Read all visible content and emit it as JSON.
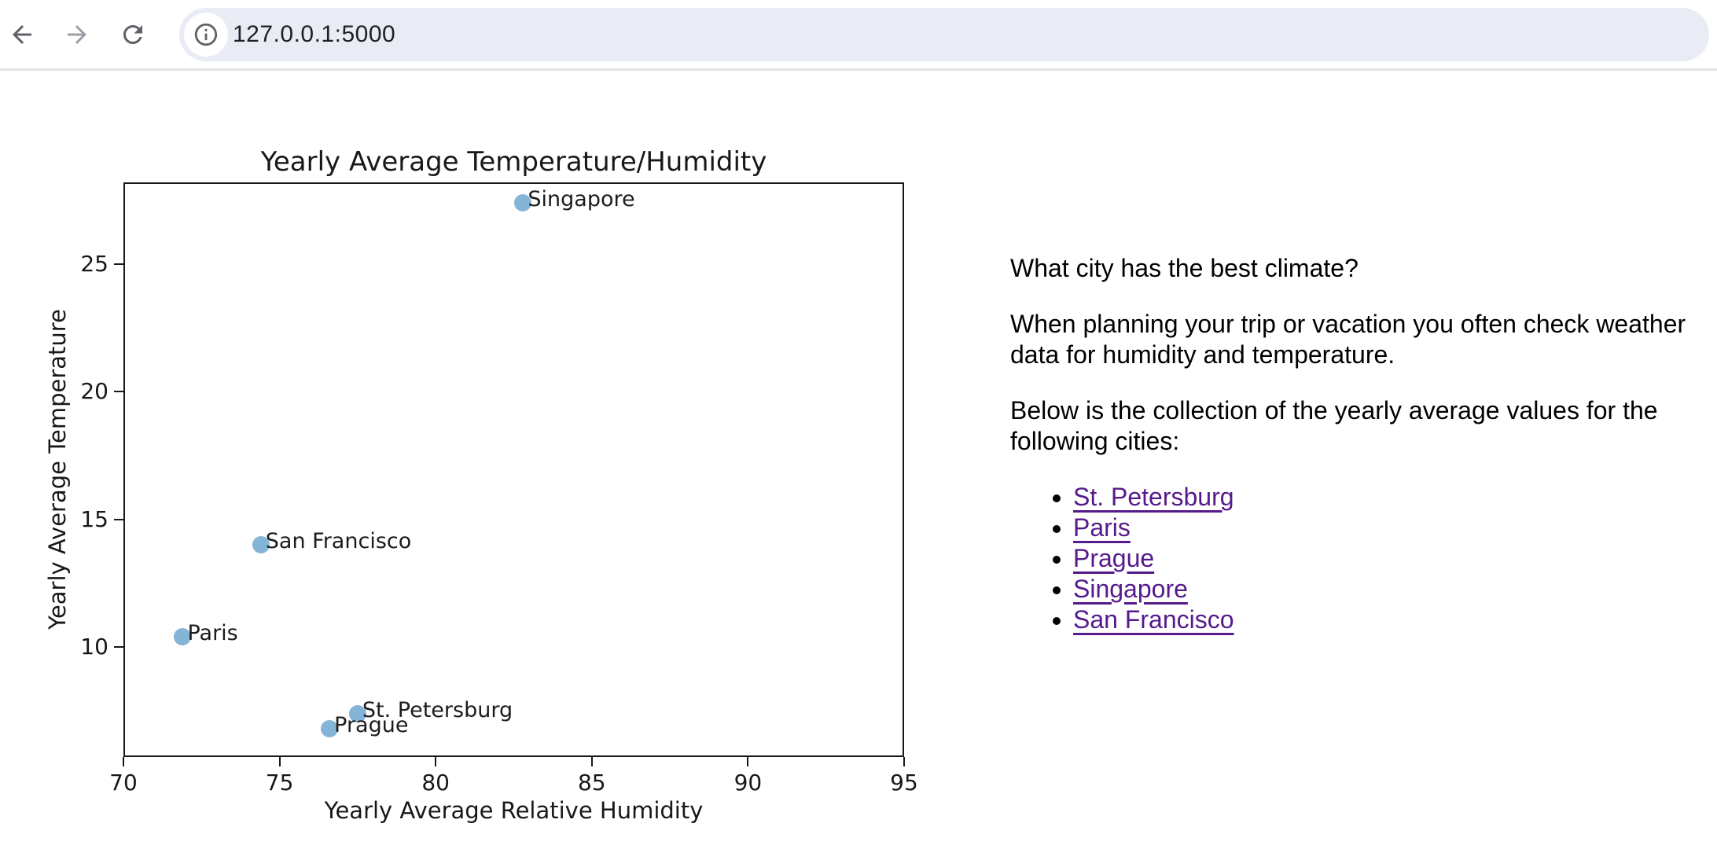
{
  "browser": {
    "url": "127.0.0.1:5000",
    "icons": {
      "back": "back-arrow-icon",
      "forward": "forward-arrow-icon",
      "reload": "reload-icon",
      "site_info": "info-icon"
    },
    "colors": {
      "icon_enabled": "#5f6368",
      "icon_disabled": "#9aa0a6",
      "omnibox_bg": "#e9ecf5",
      "url_text": "#1f2023"
    }
  },
  "content": {
    "heading_question": "What city has the best climate?",
    "para_planning": "When planning your trip or vacation you often check weather data for humidity and temperature.",
    "para_collection": "Below is the collection of the yearly average values for the following cities:",
    "city_links": [
      {
        "label": "St. Petersburg"
      },
      {
        "label": "Paris"
      },
      {
        "label": "Prague"
      },
      {
        "label": "Singapore"
      },
      {
        "label": "San Francisco"
      }
    ],
    "link_color": "#551a8b"
  },
  "chart_data": {
    "type": "scatter",
    "title": "Yearly Average Temperature/Humidity",
    "xlabel": "Yearly Average Relative Humidity",
    "ylabel": "Yearly Average Temperature",
    "xlim": [
      70,
      95
    ],
    "ylim": [
      5.7,
      28.2
    ],
    "xticks": [
      70,
      75,
      80,
      85,
      90,
      95
    ],
    "yticks": [
      10,
      15,
      20,
      25
    ],
    "grid": false,
    "legend": "none",
    "marker_color": "#1f77b4",
    "marker_alpha": 0.55,
    "points": [
      {
        "name": "St. Petersburg",
        "humidity": 77.5,
        "temperature": 7.4
      },
      {
        "name": "Paris",
        "humidity": 71.9,
        "temperature": 10.4
      },
      {
        "name": "Prague",
        "humidity": 76.6,
        "temperature": 6.8
      },
      {
        "name": "Singapore",
        "humidity": 82.8,
        "temperature": 27.4
      },
      {
        "name": "San Francisco",
        "humidity": 74.4,
        "temperature": 14.0
      }
    ]
  }
}
